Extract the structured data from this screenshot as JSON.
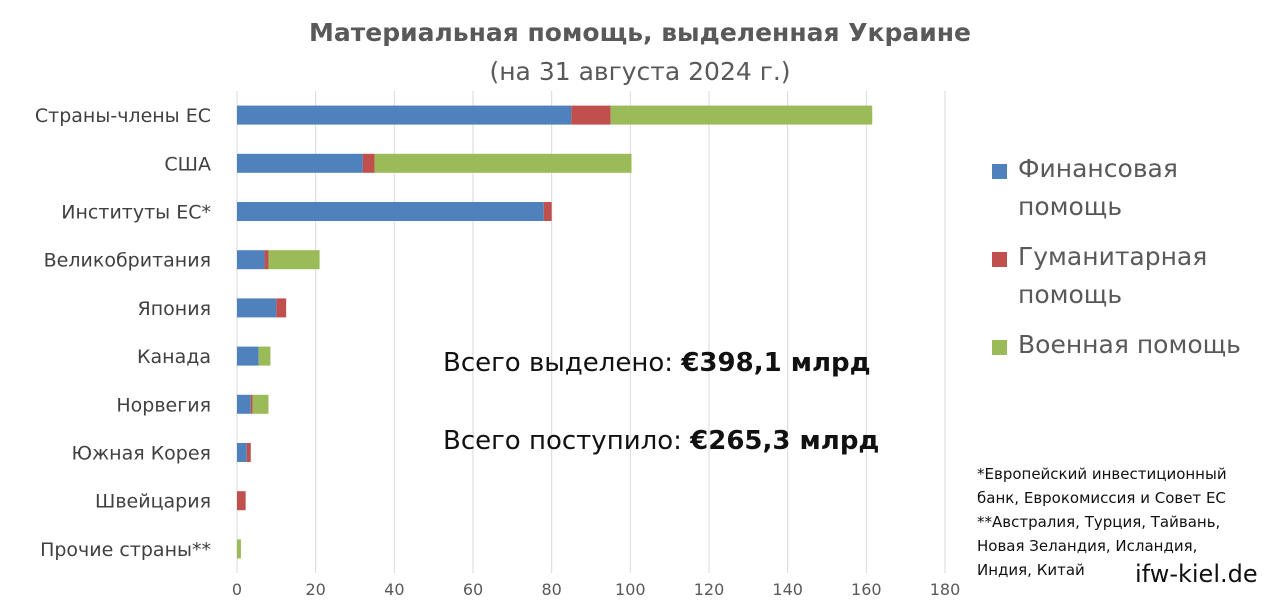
{
  "title": "Материальная помощь, выделенная Украине",
  "subtitle": "(на 31 августа 2024 г.)",
  "chart_data": {
    "type": "bar",
    "orientation": "horizontal",
    "stacked": true,
    "categories": [
      "Страны-члены ЕС",
      "США",
      "Институты ЕС*",
      "Великобритания",
      "Япония",
      "Канада",
      "Норвегия",
      "Южная Корея",
      "Швейцария",
      "Прочие страны**"
    ],
    "series": [
      {
        "name": "Финансовая помощь",
        "color": "#4f81bd",
        "values": [
          85,
          32,
          78,
          7,
          10,
          5.5,
          3.5,
          2.5,
          0,
          0
        ]
      },
      {
        "name": "Гуманитарная помощь",
        "color": "#c0504d",
        "values": [
          10,
          3,
          2,
          1,
          2.5,
          0,
          0.5,
          1,
          2.2,
          0
        ]
      },
      {
        "name": "Военная помощь",
        "color": "#9bbb59",
        "values": [
          66.5,
          65.3,
          0,
          13,
          0,
          3,
          4,
          0,
          0,
          1
        ]
      }
    ],
    "x_ticks": [
      0,
      20,
      40,
      60,
      80,
      100,
      120,
      140,
      160,
      180
    ],
    "xlim": [
      0,
      180
    ],
    "grid": true,
    "legend_position": "right"
  },
  "totals": {
    "allocated_label": "Всего выделено:",
    "allocated_value": "€398,1 млрд",
    "delivered_label": "Всего поступило:",
    "delivered_value": "€265,3 млрд"
  },
  "footnote": {
    "line1": "*Европейский инвестиционный",
    "line2": "банк, Еврокомиссия и Совет ЕС",
    "line3": "**Австралия, Турция, Тайвань,",
    "line4": "Новая Зеландия, Исландия,",
    "line5": "Индия, Китай"
  },
  "site": "ifw-kiel.de"
}
